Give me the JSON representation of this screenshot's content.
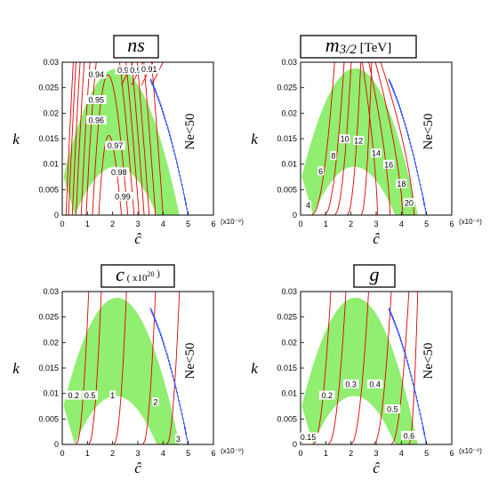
{
  "colors": {
    "band": "#90ee70",
    "contour": "#e00000",
    "boundary": "#3050ff",
    "frame": "#000000"
  },
  "chart_data": [
    {
      "type": "line",
      "title": "ns",
      "title_parts": [
        {
          "text": "ns",
          "style": "italic-serif-large"
        }
      ],
      "xlabel": "ĉ",
      "ylabel": "k",
      "x_multiplier": "(x10⁻⁹)",
      "xlim": [
        0,
        6
      ],
      "ylim": [
        0,
        0.03
      ],
      "xticks": [
        "0",
        "1",
        "2",
        "3",
        "4",
        "5",
        "6"
      ],
      "yticks": [
        "0",
        "0.005",
        "0.01",
        "0.015",
        "0.02",
        "0.025",
        "0.03"
      ],
      "annotation": "Ne<50",
      "contour_labels": [
        {
          "text": "0.94",
          "x": 1.35,
          "y": 0.0275
        },
        {
          "text": "0.95",
          "x": 1.35,
          "y": 0.0225
        },
        {
          "text": "0.96",
          "x": 1.35,
          "y": 0.0185
        },
        {
          "text": "0.97",
          "x": 2.1,
          "y": 0.0135
        },
        {
          "text": "0.98",
          "x": 2.25,
          "y": 0.0083
        },
        {
          "text": "0.99",
          "x": 2.4,
          "y": 0.0035
        },
        {
          "text": "0.93",
          "x": 2.5,
          "y": 0.0283
        },
        {
          "text": "0.92",
          "x": 3.0,
          "y": 0.0283
        },
        {
          "text": "0.91",
          "x": 3.45,
          "y": 0.0285
        }
      ]
    },
    {
      "type": "line",
      "title": "m3/2 [TeV]",
      "title_parts": [
        {
          "text": "m",
          "style": "italic-serif-large"
        },
        {
          "text": "3/2",
          "style": "italic-serif-sub"
        },
        {
          "text": " [TeV]",
          "style": "serif"
        }
      ],
      "xlabel": "ĉ",
      "ylabel": "k",
      "x_multiplier": "(x10⁻⁹)",
      "xlim": [
        0,
        6
      ],
      "ylim": [
        0,
        0.03
      ],
      "xticks": [
        "0",
        "1",
        "2",
        "3",
        "4",
        "5",
        "6"
      ],
      "yticks": [
        "0",
        "0.005",
        "0.01",
        "0.015",
        "0.02",
        "0.025",
        "0.03"
      ],
      "annotation": "Ne<50",
      "contour_labels": [
        {
          "text": "4",
          "x": 0.3,
          "y": 0.0018
        },
        {
          "text": "6",
          "x": 0.8,
          "y": 0.0085
        },
        {
          "text": "8",
          "x": 1.3,
          "y": 0.0115
        },
        {
          "text": "10",
          "x": 1.75,
          "y": 0.0148
        },
        {
          "text": "12",
          "x": 2.3,
          "y": 0.0145
        },
        {
          "text": "14",
          "x": 3.0,
          "y": 0.012
        },
        {
          "text": "16",
          "x": 3.5,
          "y": 0.0098
        },
        {
          "text": "18",
          "x": 4.0,
          "y": 0.006
        },
        {
          "text": "20",
          "x": 4.3,
          "y": 0.0023
        }
      ]
    },
    {
      "type": "line",
      "title": "c (x10²⁰)",
      "title_parts": [
        {
          "text": "c",
          "style": "italic-serif-large"
        },
        {
          "text": " ( x10",
          "style": "small"
        },
        {
          "text": "20",
          "style": "sup"
        },
        {
          "text": " )",
          "style": "small"
        }
      ],
      "xlabel": "ĉ",
      "ylabel": "k",
      "x_multiplier": "(x10⁻⁹)",
      "xlim": [
        0,
        6
      ],
      "ylim": [
        0,
        0.03
      ],
      "xticks": [
        "0",
        "1",
        "2",
        "3",
        "4",
        "5",
        "6"
      ],
      "yticks": [
        "0",
        "0.005",
        "0.01",
        "0.015",
        "0.02",
        "0.025",
        "0.03"
      ],
      "annotation": "Ne<50",
      "contour_labels": [
        {
          "text": "0.2",
          "x": 0.45,
          "y": 0.0095
        },
        {
          "text": "0.5",
          "x": 1.1,
          "y": 0.0095
        },
        {
          "text": "1",
          "x": 2.0,
          "y": 0.0095
        },
        {
          "text": "2",
          "x": 3.7,
          "y": 0.0082
        },
        {
          "text": "3",
          "x": 4.6,
          "y": 0.001
        }
      ]
    },
    {
      "type": "line",
      "title": "g",
      "title_parts": [
        {
          "text": "g",
          "style": "italic-serif-large"
        }
      ],
      "xlabel": "ĉ",
      "ylabel": "k",
      "x_multiplier": "(x10⁻⁹)",
      "xlim": [
        0,
        6
      ],
      "ylim": [
        0,
        0.03
      ],
      "xticks": [
        "0",
        "1",
        "2",
        "3",
        "4",
        "5",
        "6"
      ],
      "yticks": [
        "0",
        "0.005",
        "0.01",
        "0.015",
        "0.02",
        "0.025",
        "0.03"
      ],
      "annotation": "Ne<50",
      "contour_labels": [
        {
          "text": "0.15",
          "x": 0.3,
          "y": 0.0013
        },
        {
          "text": "0.2",
          "x": 1.05,
          "y": 0.0095
        },
        {
          "text": "0.3",
          "x": 2.0,
          "y": 0.0117
        },
        {
          "text": "0.4",
          "x": 2.95,
          "y": 0.0117
        },
        {
          "text": "0.5",
          "x": 3.65,
          "y": 0.0068
        },
        {
          "text": "0.6",
          "x": 4.3,
          "y": 0.0016
        }
      ]
    }
  ]
}
